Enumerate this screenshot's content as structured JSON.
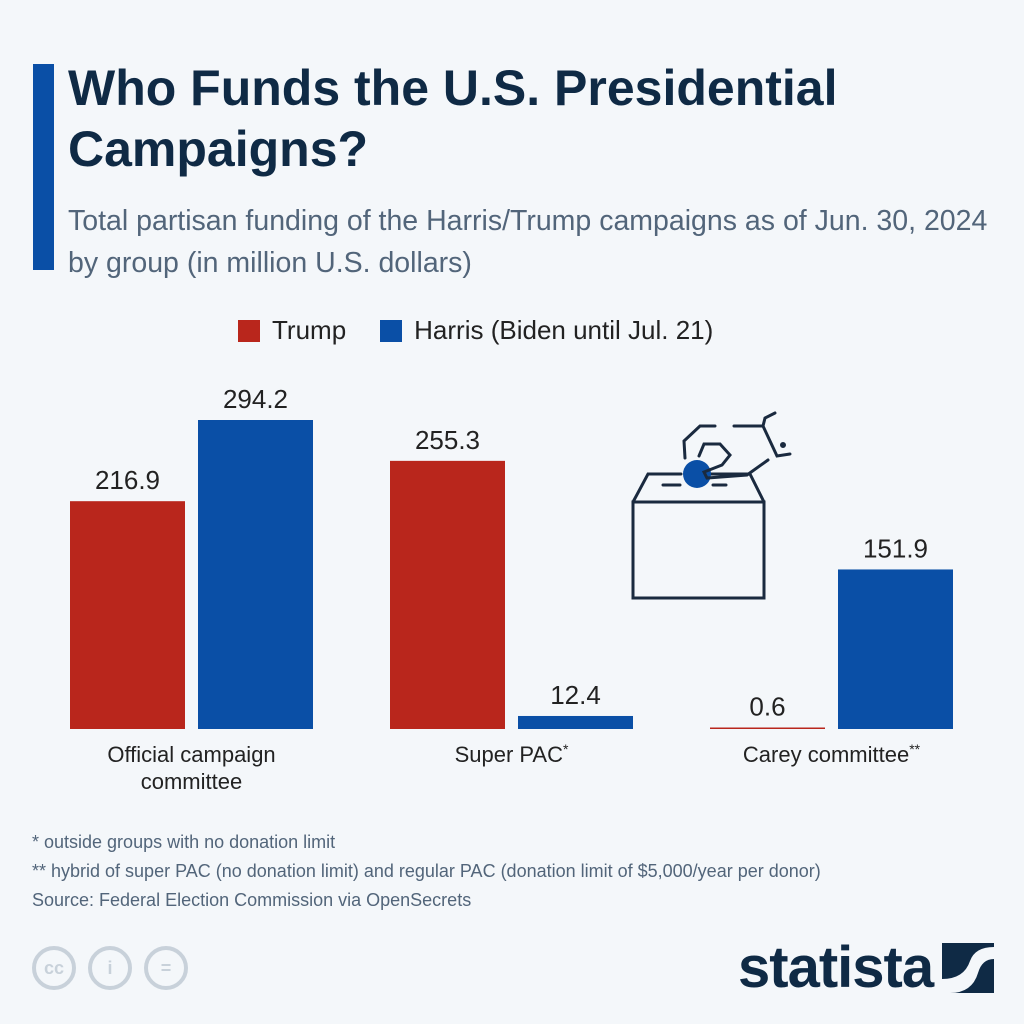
{
  "header": {
    "title": "Who Funds the U.S. Presidential Campaigns?",
    "subtitle": "Total partisan funding of the Harris/Trump campaigns as of Jun. 30, 2024 by group (in million U.S. dollars)"
  },
  "chart_data": {
    "type": "bar",
    "categories": [
      "Official campaign committee",
      "Super PAC*",
      "Carey committee**"
    ],
    "series": [
      {
        "name": "Trump",
        "color": "#b9261c",
        "values": [
          216.9,
          255.3,
          0.6
        ]
      },
      {
        "name": "Harris (Biden until Jul. 21)",
        "color": "#0a4fa6",
        "values": [
          294.2,
          12.4,
          151.9
        ]
      }
    ],
    "ylim": [
      0,
      294.2
    ],
    "grid": false,
    "legend": "top",
    "value_labels": true
  },
  "notes": [
    "*   outside groups with no donation limit",
    "** hybrid of super PAC (no donation limit) and regular PAC (donation limit of $5,000/year per donor)",
    "Source: Federal Election Commission via OpenSecrets"
  ],
  "footer": {
    "brand": "statista",
    "license_icons": [
      "cc-icon",
      "attribution-icon",
      "no-derivatives-icon"
    ]
  },
  "illustration": "ballot-box-icon"
}
